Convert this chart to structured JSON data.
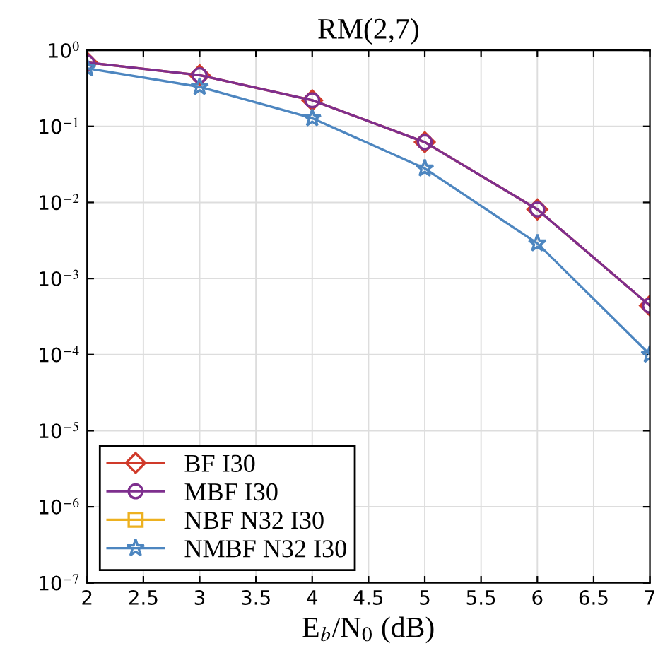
{
  "chart_data": {
    "type": "line",
    "title": "RM(2,7)",
    "xlabel": "E$_{b}$/N$_{0}$ (dB)",
    "x": [
      2,
      3,
      4,
      5,
      6,
      7
    ],
    "series": [
      {
        "name": "BF I30",
        "color": "#d03a2a",
        "marker": "diamond",
        "values": [
          0.69,
          0.47,
          0.22,
          0.062,
          0.0081,
          0.00044
        ]
      },
      {
        "name": "MBF I30",
        "color": "#7e2f8e",
        "marker": "circle",
        "values": [
          0.69,
          0.47,
          0.22,
          0.062,
          0.0081,
          0.00044
        ]
      },
      {
        "name": "NBF N32 I30",
        "color": "#edb120",
        "marker": "square",
        "values": [
          null,
          null,
          null,
          null,
          null,
          null
        ]
      },
      {
        "name": "NMBF N32 I30",
        "color": "#4d86c0",
        "marker": "star",
        "values": [
          0.58,
          0.33,
          0.128,
          0.028,
          0.0029,
          0.0001
        ]
      }
    ],
    "log": "y",
    "xlim": [
      2,
      7
    ],
    "xticks": [
      2,
      2.5,
      3,
      3.5,
      4,
      4.5,
      5,
      5.5,
      6,
      6.5,
      7
    ],
    "ylim": [
      1e-07,
      1
    ],
    "yticks": [
      {
        "value": 1e-07,
        "label": "10$^{−7}$"
      },
      {
        "value": 1e-06,
        "label": "10$^{−6}$"
      },
      {
        "value": 1e-05,
        "label": "10$^{−5}$"
      },
      {
        "value": 0.0001,
        "label": "10$^{−4}$"
      },
      {
        "value": 0.001,
        "label": "10$^{−3}$"
      },
      {
        "value": 0.01,
        "label": "10$^{−2}$"
      },
      {
        "value": 0.1,
        "label": "10$^{−1}$"
      },
      {
        "value": 1,
        "label": "10$^{0}$"
      }
    ],
    "grid": true,
    "legend": "bottom left",
    "line_style": "solid"
  }
}
